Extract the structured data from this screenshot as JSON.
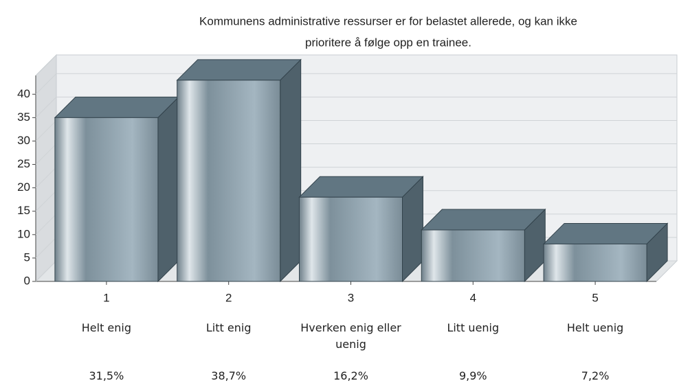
{
  "chart_data": {
    "type": "bar3d",
    "title_lines": [
      "Kommunens administrative ressurser er for belastet allerede, og kan ikke",
      "prioritere å følge opp en trainee."
    ],
    "categories": [
      "1",
      "2",
      "3",
      "4",
      "5"
    ],
    "answer_labels": [
      "Helt enig",
      "Litt enig",
      "Hverken enig eller uenig",
      "Litt uenig",
      "Helt uenig"
    ],
    "shares": [
      "31,5%",
      "38,7%",
      "16,2%",
      "9,9%",
      "7,2%"
    ],
    "values": [
      35,
      43,
      18,
      11,
      8
    ],
    "color": "#8fa3b0",
    "ylim": [
      0,
      44
    ],
    "yticks": [
      0,
      5,
      10,
      15,
      20,
      25,
      30,
      35,
      40
    ],
    "grid": true
  }
}
